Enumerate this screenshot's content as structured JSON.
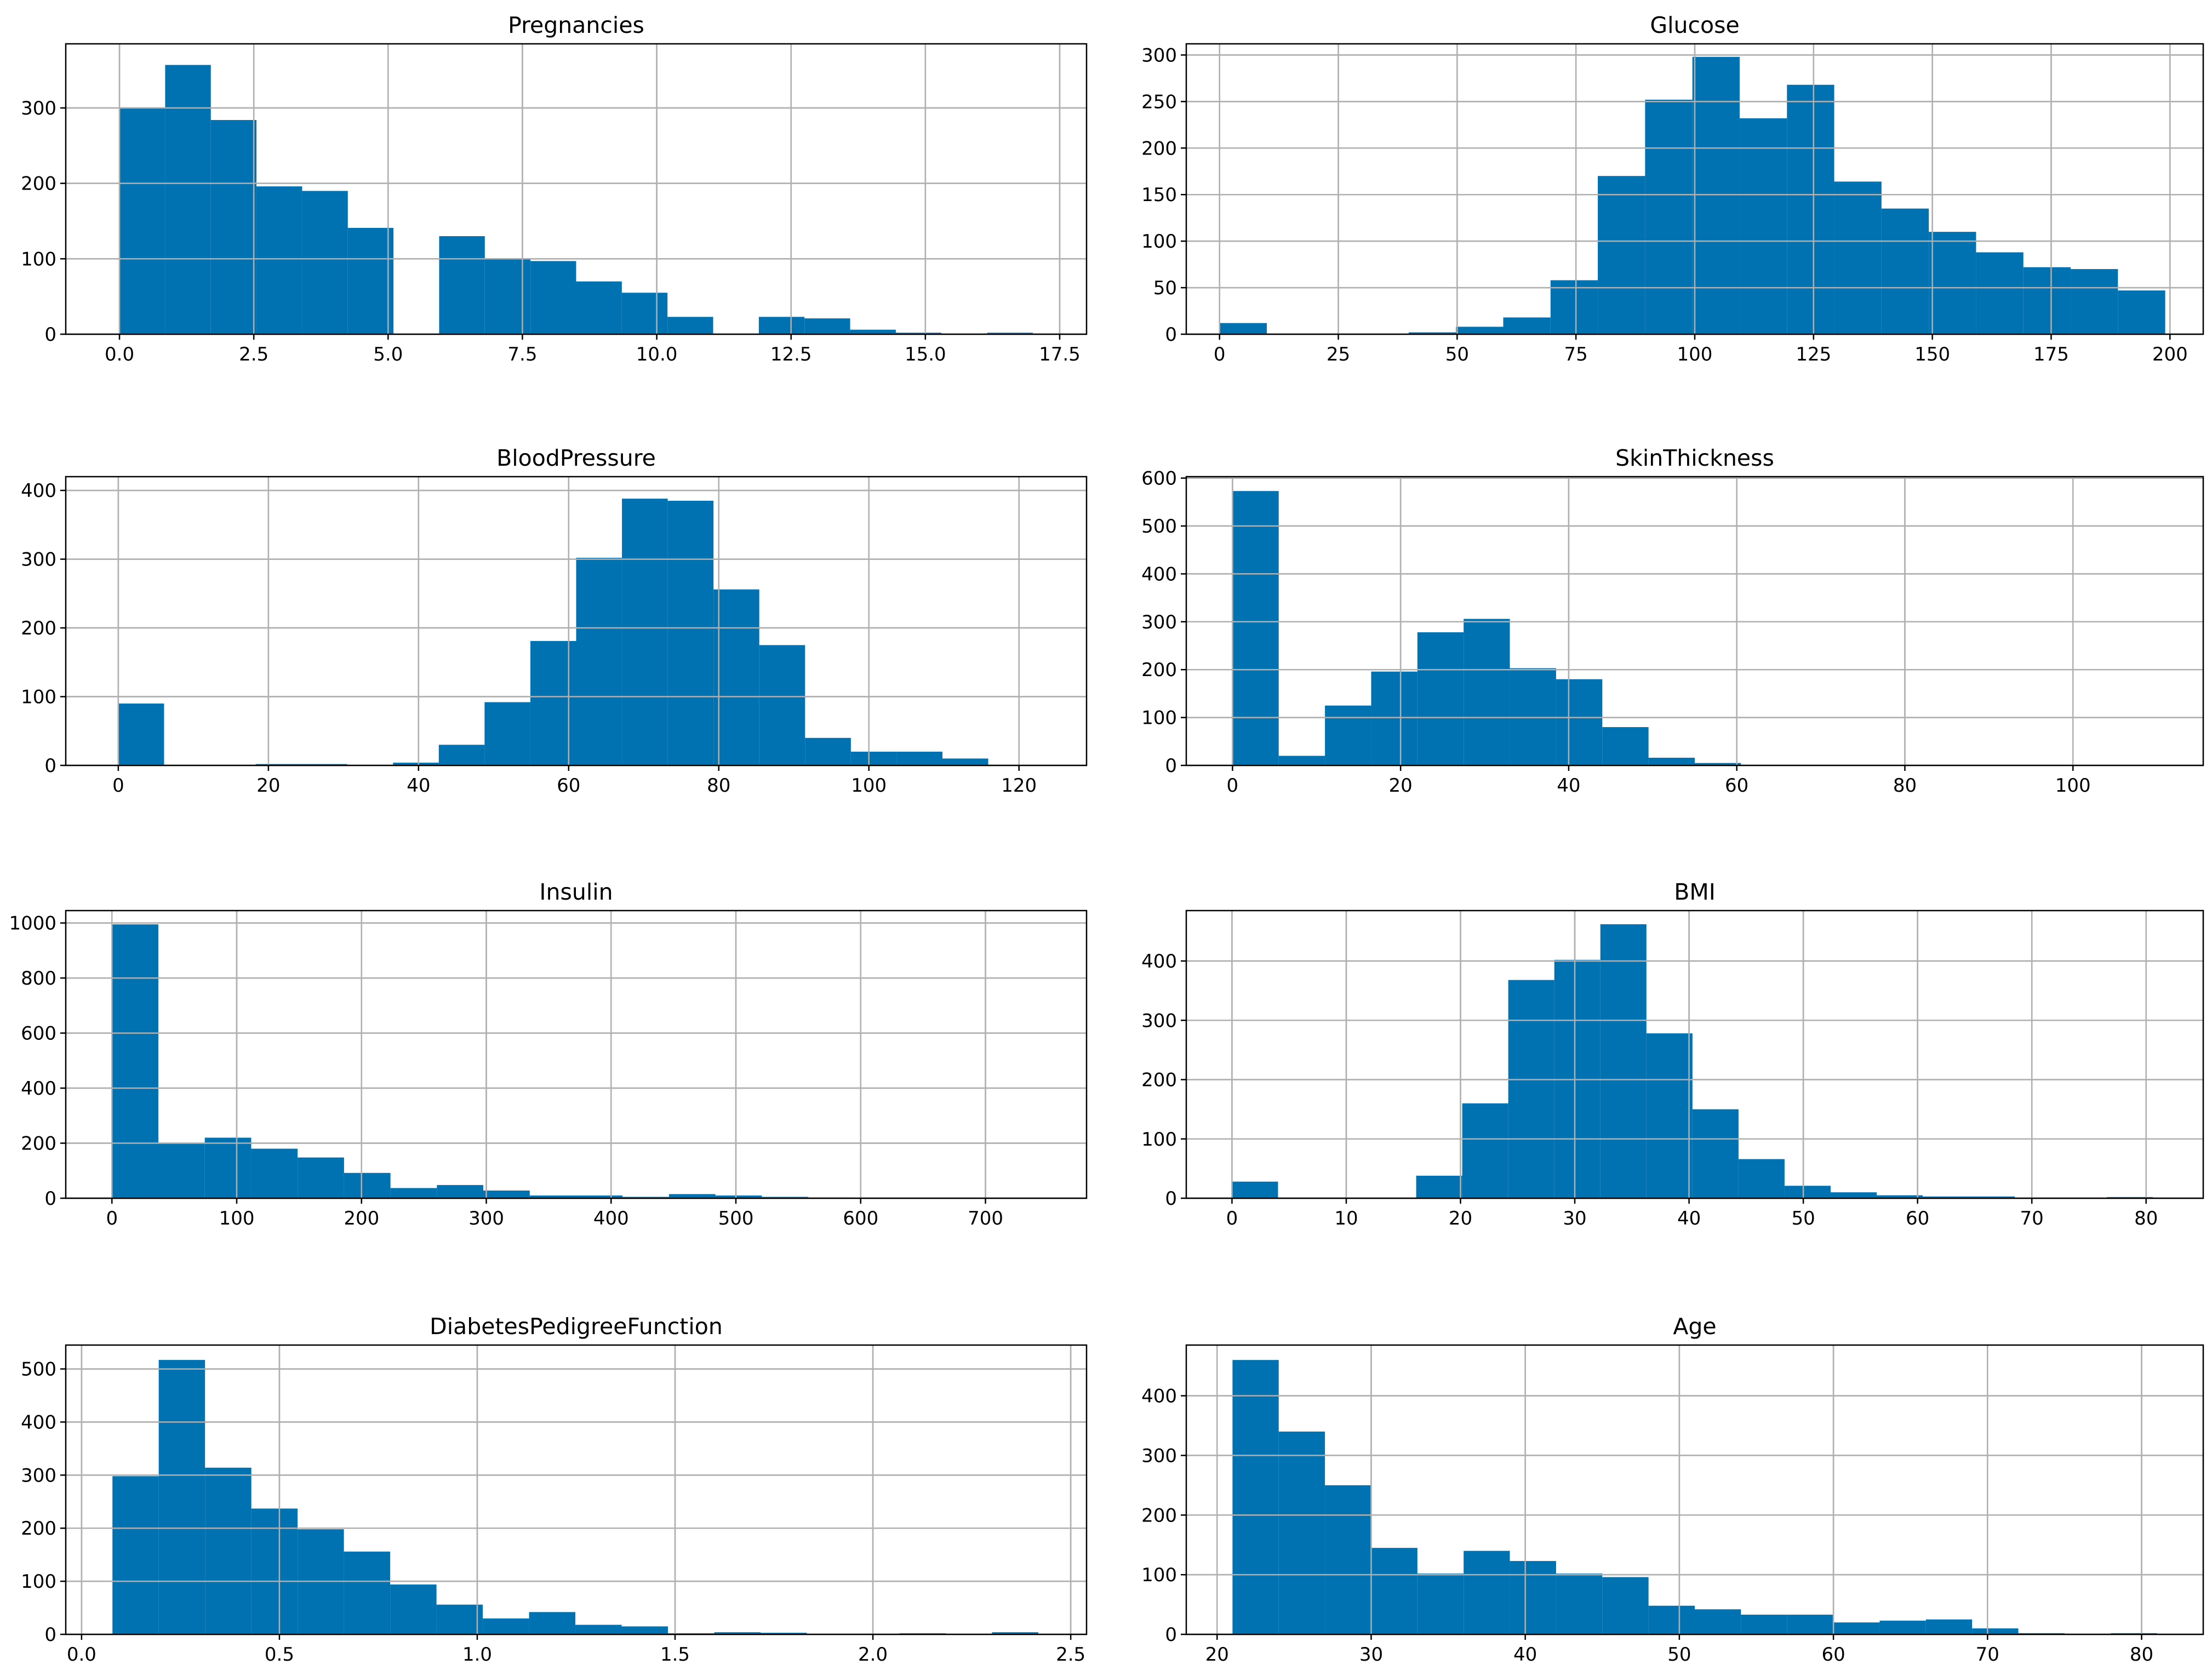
{
  "figure": {
    "bar_color": "#0072B2",
    "grid_color": "#b0b0b0"
  },
  "chart_data": [
    {
      "type": "bar",
      "title": "Pregnancies",
      "bin_start": 0.0,
      "bin_width": 0.85,
      "values": [
        300,
        357,
        284,
        196,
        190,
        141,
        0,
        130,
        100,
        97,
        70,
        55,
        23,
        0,
        23,
        21,
        6,
        2,
        0,
        2
      ],
      "xlim": [
        -1.0,
        18.0
      ],
      "ylim": [
        0,
        385
      ],
      "xticks": [
        0.0,
        2.5,
        5.0,
        7.5,
        10.0,
        12.5,
        15.0,
        17.5
      ],
      "xtick_labels": [
        "0.0",
        "2.5",
        "5.0",
        "7.5",
        "10.0",
        "12.5",
        "15.0",
        "17.5"
      ],
      "yticks": [
        0,
        100,
        200,
        300
      ],
      "ytick_labels": [
        "0",
        "100",
        "200",
        "300"
      ]
    },
    {
      "type": "bar",
      "title": "Glucose",
      "bin_start": 0,
      "bin_width": 9.95,
      "values": [
        12,
        0,
        0,
        0,
        2,
        8,
        18,
        58,
        170,
        252,
        298,
        232,
        268,
        164,
        135,
        110,
        88,
        72,
        70,
        47
      ],
      "xlim": [
        -7,
        207
      ],
      "ylim": [
        0,
        312
      ],
      "xticks": [
        0,
        25,
        50,
        75,
        100,
        125,
        150,
        175,
        200
      ],
      "xtick_labels": [
        "0",
        "25",
        "50",
        "75",
        "100",
        "125",
        "150",
        "175",
        "200"
      ],
      "yticks": [
        0,
        50,
        100,
        150,
        200,
        250,
        300
      ],
      "ytick_labels": [
        "0",
        "50",
        "100",
        "150",
        "200",
        "250",
        "300"
      ]
    },
    {
      "type": "bar",
      "title": "BloodPressure",
      "bin_start": 0,
      "bin_width": 6.1,
      "values": [
        90,
        0,
        0,
        2,
        2,
        0,
        4,
        30,
        92,
        181,
        302,
        388,
        385,
        256,
        175,
        40,
        20,
        20,
        10,
        0
      ],
      "xlim": [
        -7,
        129
      ],
      "ylim": [
        0,
        420
      ],
      "xticks": [
        0,
        20,
        40,
        60,
        80,
        100,
        120
      ],
      "xtick_labels": [
        "0",
        "20",
        "40",
        "60",
        "80",
        "100",
        "120"
      ],
      "yticks": [
        0,
        100,
        200,
        300,
        400
      ],
      "ytick_labels": [
        "0",
        "100",
        "200",
        "300",
        "400"
      ]
    },
    {
      "type": "bar",
      "title": "SkinThickness",
      "bin_start": 0,
      "bin_width": 5.5,
      "values": [
        573,
        20,
        125,
        196,
        278,
        306,
        203,
        180,
        80,
        16,
        5,
        1,
        0,
        0,
        0,
        0,
        0,
        0,
        0,
        0
      ],
      "xlim": [
        -5.5,
        115.5
      ],
      "ylim": [
        0,
        603
      ],
      "xticks": [
        0,
        20,
        40,
        60,
        80,
        100
      ],
      "xtick_labels": [
        "0",
        "20",
        "40",
        "60",
        "80",
        "100"
      ],
      "yticks": [
        0,
        100,
        200,
        300,
        400,
        500,
        600
      ],
      "ytick_labels": [
        "0",
        "100",
        "200",
        "300",
        "400",
        "500",
        "600"
      ]
    },
    {
      "type": "bar",
      "title": "Insulin",
      "bin_start": 0,
      "bin_width": 37.2,
      "values": [
        995,
        198,
        220,
        180,
        148,
        92,
        37,
        48,
        28,
        10,
        10,
        5,
        15,
        10,
        5,
        3,
        0,
        0,
        0,
        0
      ],
      "xlim": [
        -37,
        781
      ],
      "ylim": [
        0,
        1045
      ],
      "xticks": [
        0,
        100,
        200,
        300,
        400,
        500,
        600,
        700
      ],
      "xtick_labels": [
        "0",
        "100",
        "200",
        "300",
        "400",
        "500",
        "600",
        "700"
      ],
      "yticks": [
        0,
        200,
        400,
        600,
        800,
        1000
      ],
      "ytick_labels": [
        "0",
        "200",
        "400",
        "600",
        "800",
        "1000"
      ]
    },
    {
      "type": "bar",
      "title": "BMI",
      "bin_start": 0,
      "bin_width": 4.03,
      "values": [
        28,
        0,
        0,
        0,
        38,
        160,
        368,
        402,
        462,
        278,
        150,
        66,
        21,
        10,
        5,
        3,
        3,
        0,
        0,
        2
      ],
      "xlim": [
        -4,
        85
      ],
      "ylim": [
        0,
        485
      ],
      "xticks": [
        0,
        10,
        20,
        30,
        40,
        50,
        60,
        70,
        80
      ],
      "xtick_labels": [
        "0",
        "10",
        "20",
        "30",
        "40",
        "50",
        "60",
        "70",
        "80"
      ],
      "yticks": [
        0,
        100,
        200,
        300,
        400
      ],
      "ytick_labels": [
        "0",
        "100",
        "200",
        "300",
        "400"
      ]
    },
    {
      "type": "bar",
      "title": "DiabetesPedigreeFunction",
      "bin_start": 0.078,
      "bin_width": 0.117,
      "values": [
        298,
        517,
        314,
        237,
        198,
        156,
        94,
        56,
        30,
        42,
        18,
        15,
        2,
        4,
        3,
        0,
        0,
        2,
        0,
        4
      ],
      "xlim": [
        -0.04,
        2.54
      ],
      "ylim": [
        0,
        545
      ],
      "xticks": [
        0.0,
        0.5,
        1.0,
        1.5,
        2.0,
        2.5
      ],
      "xtick_labels": [
        "0.0",
        "0.5",
        "1.0",
        "1.5",
        "2.0",
        "2.5"
      ],
      "yticks": [
        0,
        100,
        200,
        300,
        400,
        500
      ],
      "ytick_labels": [
        "0",
        "100",
        "200",
        "300",
        "400",
        "500"
      ]
    },
    {
      "type": "bar",
      "title": "Age",
      "bin_start": 21,
      "bin_width": 3.0,
      "values": [
        460,
        340,
        250,
        145,
        102,
        140,
        123,
        102,
        96,
        48,
        42,
        33,
        33,
        20,
        23,
        25,
        10,
        2,
        0,
        2
      ],
      "xlim": [
        18,
        84
      ],
      "ylim": [
        0,
        485
      ],
      "xticks": [
        20,
        30,
        40,
        50,
        60,
        70,
        80
      ],
      "xtick_labels": [
        "20",
        "30",
        "40",
        "50",
        "60",
        "70",
        "80"
      ],
      "yticks": [
        0,
        100,
        200,
        300,
        400
      ],
      "ytick_labels": [
        "0",
        "100",
        "200",
        "300",
        "400"
      ]
    }
  ]
}
